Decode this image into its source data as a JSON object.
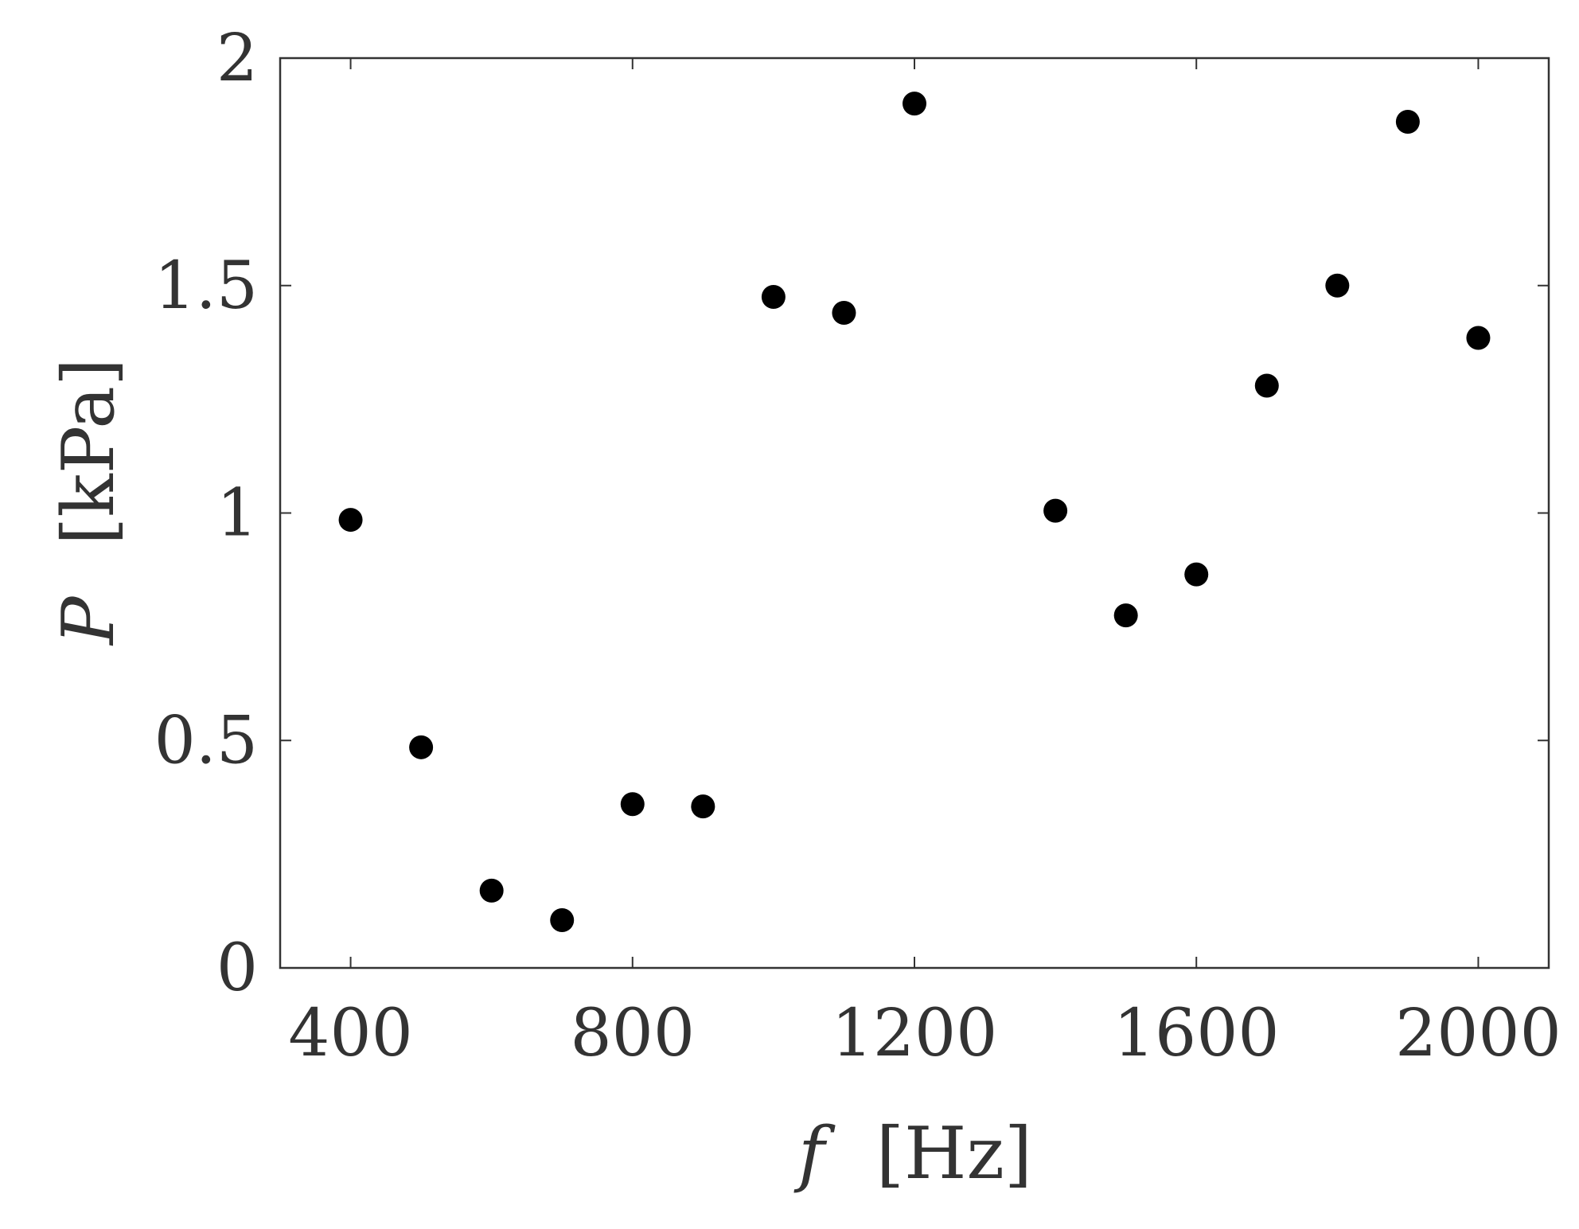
{
  "chart_data": {
    "type": "scatter",
    "title": "",
    "xlabel": {
      "symbol": "f",
      "unit": "[Hz]"
    },
    "ylabel": {
      "symbol": "P",
      "unit": "[kPa]"
    },
    "xlim": [
      300,
      2100
    ],
    "ylim": [
      0,
      2
    ],
    "x_ticks": [
      400,
      800,
      1200,
      1600,
      2000
    ],
    "x_tick_labels": [
      "400",
      "800",
      "1200",
      "1600",
      "2000"
    ],
    "y_ticks": [
      0,
      0.5,
      1,
      1.5,
      2
    ],
    "y_tick_labels": [
      "0",
      "0.5",
      "1",
      "1.5",
      "2"
    ],
    "grid": false,
    "legend": "none",
    "marker_color": "#000000",
    "axis_color": "#333333",
    "series": [
      {
        "x": [
          400,
          500,
          600,
          700,
          800,
          900,
          1000,
          1100,
          1200,
          1400,
          1500,
          1600,
          1700,
          1800,
          1900,
          2000
        ],
        "y": [
          0.985,
          0.485,
          0.17,
          0.105,
          0.36,
          0.355,
          1.475,
          1.44,
          1.9,
          1.005,
          0.775,
          0.865,
          1.28,
          1.5,
          1.86,
          1.385
        ]
      }
    ]
  }
}
